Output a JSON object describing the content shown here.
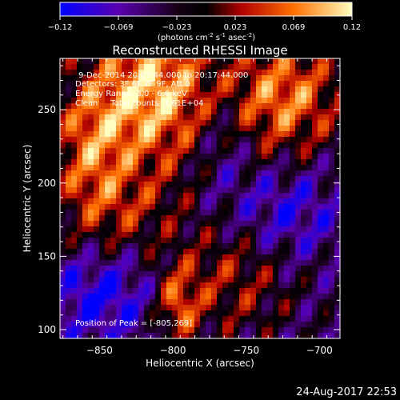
{
  "chart_data": {
    "type": "heatmap",
    "title": "Reconstructed RHESSI Image",
    "xlabel": "Heliocentric X (arcsec)",
    "ylabel": "Heliocentric Y (arcsec)",
    "xlim": [
      -877,
      -686
    ],
    "ylim": [
      94,
      285
    ],
    "xticks": [
      -850,
      -800,
      -750,
      -700
    ],
    "yticks": [
      100,
      150,
      200,
      250
    ],
    "colorbar": {
      "ticks": [
        "-0.12",
        "-0.069",
        "-0.023",
        "0.023",
        "0.069",
        "0.12"
      ],
      "min": -0.12,
      "max": 0.12,
      "units_prefix": "(photons cm",
      "units_exp1": "-2",
      "units_mid1": " s",
      "units_exp2": "-1",
      "units_mid2": " asec",
      "units_exp3": "-2",
      "units_suffix": ")"
    },
    "annotations": {
      "time_range": "9-Dec-2014 20:07:44.000 to 20:17:44.000",
      "detectors": "Detectors: 3F 6F 7F 9F, Att 0",
      "energy": "Energy Range: 3.0 - 6.0 keV",
      "clean": "Clean     Total counts: 3.61E+04",
      "peak": "Position of Peak = [-805,269]"
    },
    "peak": [
      -805,
      269
    ],
    "grid": false,
    "legend": "none"
  },
  "footer": {
    "date": "24-Aug-2017 22:53"
  }
}
